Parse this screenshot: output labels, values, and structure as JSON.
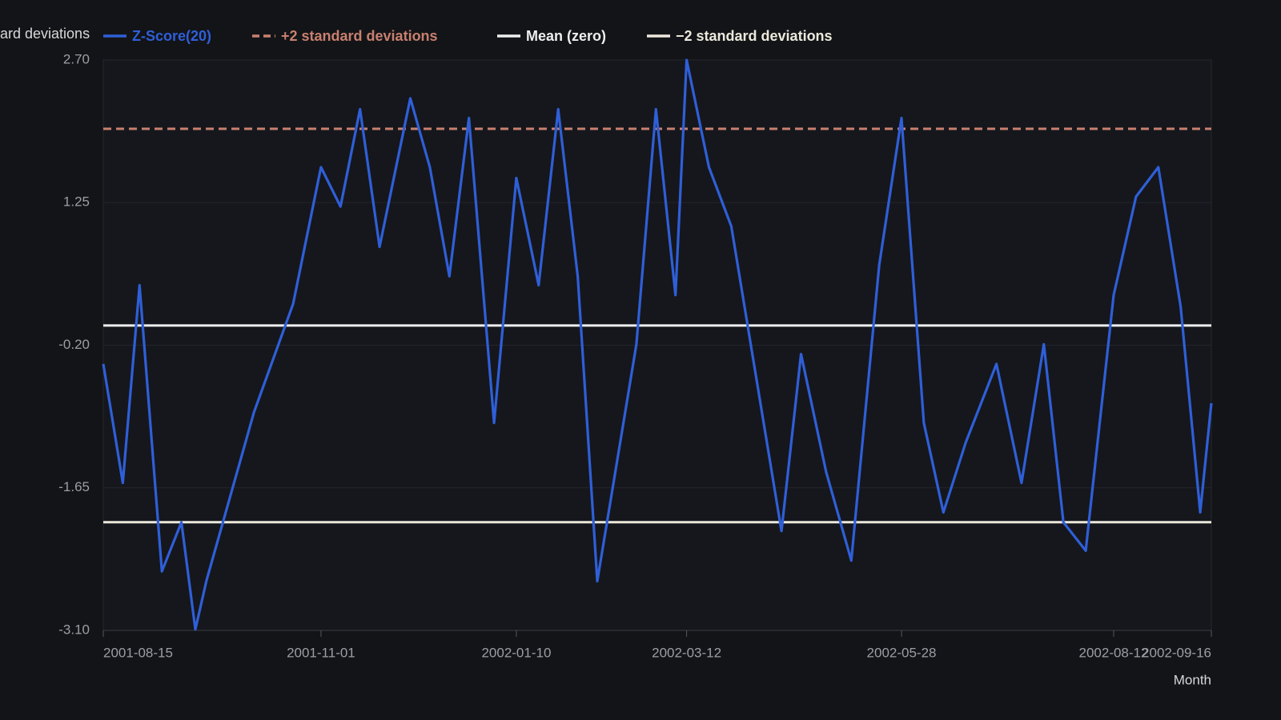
{
  "chart_data": {
    "type": "line",
    "y_label_fragment": "ard deviations",
    "x_label": "Month",
    "x": [
      "2001-08-15",
      "2001-08-22",
      "2001-08-28",
      "2001-09-05",
      "2001-09-12",
      "2001-09-17",
      "2001-09-21",
      "2001-10-08",
      "2001-10-22",
      "2001-11-01",
      "2001-11-08",
      "2001-11-15",
      "2001-11-22",
      "2001-12-03",
      "2001-12-10",
      "2001-12-17",
      "2001-12-24",
      "2002-01-02",
      "2002-01-10",
      "2002-01-18",
      "2002-01-25",
      "2002-02-01",
      "2002-02-08",
      "2002-02-22",
      "2002-03-01",
      "2002-03-08",
      "2002-03-12",
      "2002-03-20",
      "2002-03-28",
      "2002-04-15",
      "2002-04-22",
      "2002-05-01",
      "2002-05-10",
      "2002-05-20",
      "2002-05-28",
      "2002-06-05",
      "2002-06-12",
      "2002-06-20",
      "2002-07-01",
      "2002-07-10",
      "2002-07-18",
      "2002-07-25",
      "2002-08-02",
      "2002-08-12",
      "2002-08-20",
      "2002-08-28",
      "2002-09-05",
      "2002-09-12",
      "2002-09-16"
    ],
    "series": [
      {
        "name": "Z-Score(20)",
        "color": "#2f5fd8",
        "values": [
          -0.39,
          -1.6,
          0.41,
          -2.5,
          -2.0,
          -3.09,
          -2.59,
          -0.88,
          0.22,
          1.61,
          1.21,
          2.2,
          0.8,
          2.31,
          1.61,
          0.5,
          2.11,
          -0.99,
          1.5,
          0.41,
          2.2,
          0.5,
          -2.6,
          -0.19,
          2.2,
          0.31,
          2.7,
          1.61,
          1.01,
          -2.09,
          -0.29,
          -1.49,
          -2.39,
          0.61,
          2.11,
          -0.99,
          -1.9,
          -1.19,
          -0.39,
          -1.6,
          -0.19,
          -2.0,
          -2.29,
          0.31,
          1.31,
          1.61,
          0.19,
          -1.9,
          -0.79
        ]
      }
    ],
    "reference_lines": [
      {
        "name": "+2 standard deviations",
        "color": "#c8806f",
        "value": 2,
        "dashed": true
      },
      {
        "name": "Mean (zero)",
        "color": "#eeeeee",
        "value": 0,
        "dashed": false
      },
      {
        "name": "−2 standard deviations",
        "color": "#ece9dc",
        "value": -2,
        "dashed": false
      }
    ],
    "xlim": [
      "2001-08-15",
      "2002-09-16"
    ],
    "xticks": [
      "2001-08-15",
      "2001-11-01",
      "2002-01-10",
      "2002-03-12",
      "2002-05-28",
      "2002-08-12",
      "2002-09-16"
    ],
    "ylim": [
      -3.1,
      2.7
    ],
    "yticks": [
      {
        "value": -3.1,
        "label": "-3.10"
      },
      -1.65,
      {
        "value": -0.2,
        "label": "-0.20"
      },
      1.25,
      {
        "value": 2.7,
        "label": "2.70"
      }
    ],
    "grid": true
  }
}
